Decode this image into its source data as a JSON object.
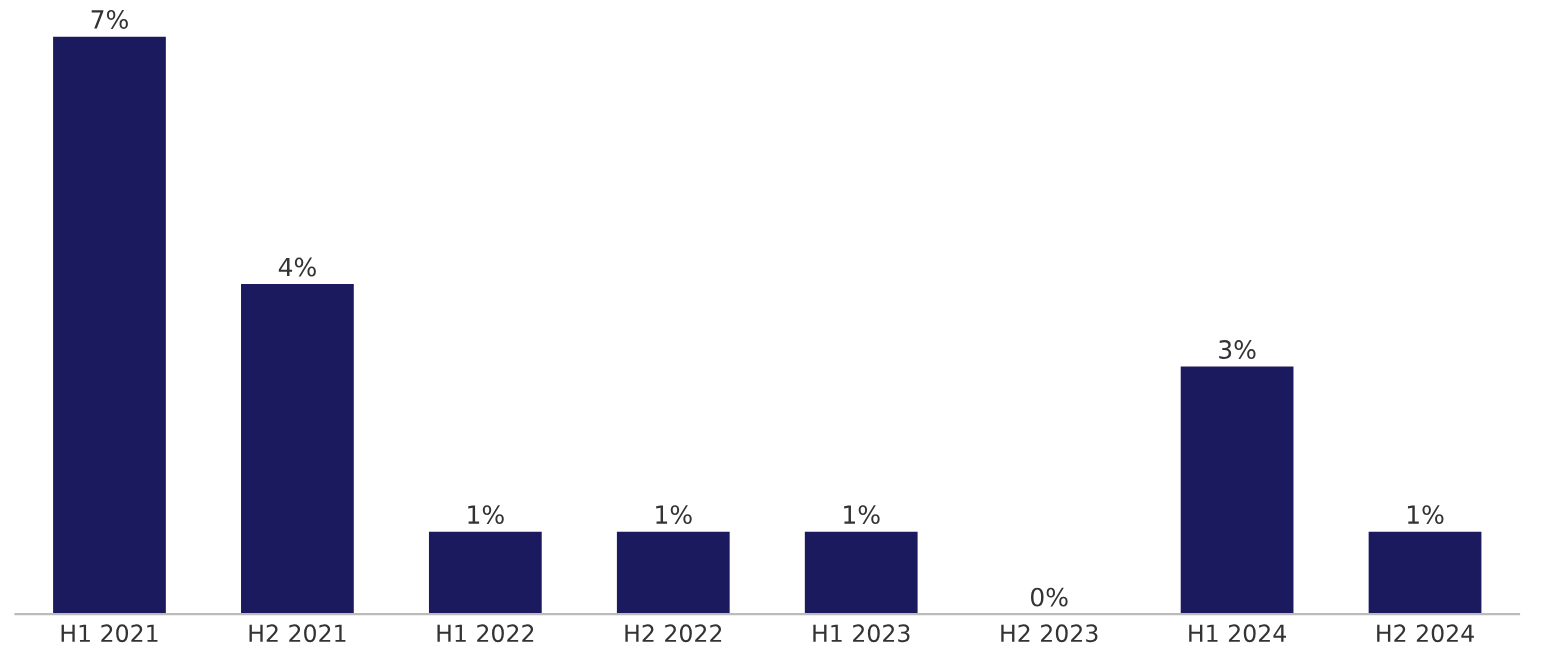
{
  "chart_data": {
    "type": "bar",
    "categories": [
      "H1 2021",
      "H2 2021",
      "H1 2022",
      "H2 2022",
      "H1 2023",
      "H2 2023",
      "H1 2024",
      "H2 2024"
    ],
    "values": [
      7,
      4,
      1,
      1,
      1,
      0,
      3,
      1
    ],
    "value_labels": [
      "7%",
      "4%",
      "1%",
      "1%",
      "1%",
      "0%",
      "3%",
      "1%"
    ],
    "color": "#1c1a5e",
    "ylim": [
      0,
      7
    ],
    "grid": false,
    "legend": false
  }
}
